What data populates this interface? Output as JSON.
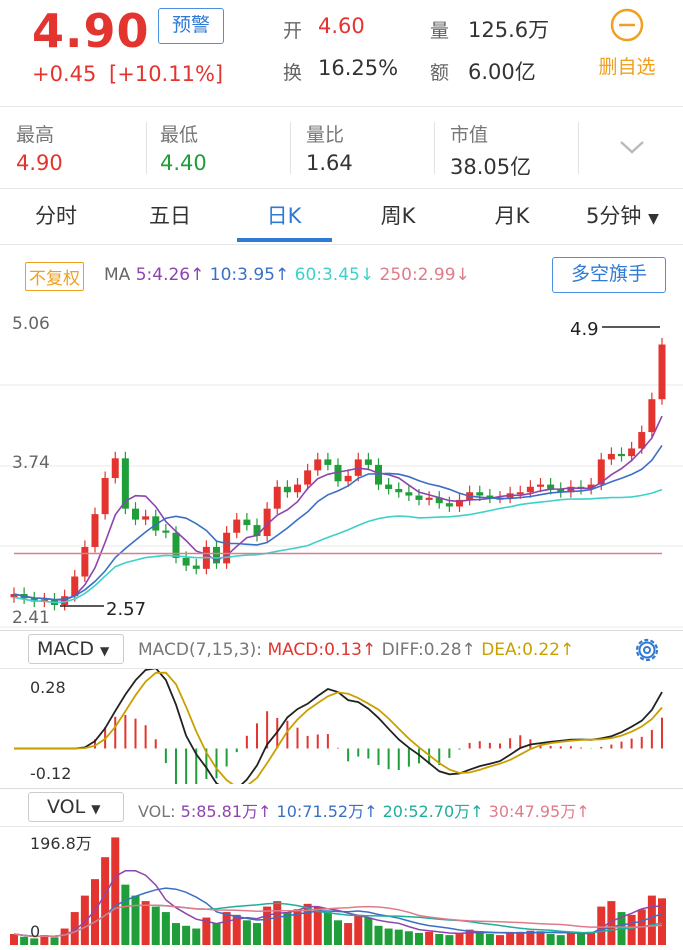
{
  "header": {
    "price": "4.90",
    "change": "+0.45",
    "change_pct": "[+10.11%]",
    "alert_label": "预警",
    "open_label": "开",
    "open_value": "4.60",
    "volume_label": "量",
    "volume_value": "125.6万",
    "turnover_label": "换",
    "turnover_value": "16.25%",
    "amount_label": "额",
    "amount_value": "6.00亿",
    "remove_watch_label": "删自选"
  },
  "stats": [
    {
      "label": "最高",
      "value": "4.90",
      "color": "#e3342f"
    },
    {
      "label": "最低",
      "value": "4.40",
      "color": "#1f9e3a"
    },
    {
      "label": "量比",
      "value": "1.64",
      "color": "#333333"
    },
    {
      "label": "市值",
      "value": "38.05亿",
      "color": "#333333"
    }
  ],
  "tabs": [
    {
      "label": "分时",
      "active": false
    },
    {
      "label": "五日",
      "active": false
    },
    {
      "label": "日K",
      "active": true
    },
    {
      "label": "周K",
      "active": false
    },
    {
      "label": "月K",
      "active": false
    },
    {
      "label": "5分钟",
      "active": false
    }
  ],
  "ma_bar": {
    "adjust_label": "不复权",
    "ma_label": "MA",
    "ma5": "5:4.26↑",
    "ma10": "10:3.95↑",
    "ma60": "60:3.45↓",
    "ma250": "250:2.99↓",
    "bull_bear_label": "多空旗手"
  },
  "kline": {
    "ymax_label": "5.06",
    "ymid_label": "3.74",
    "ymin_label": "2.41",
    "high_annot": "4.9",
    "low_annot": "2.57"
  },
  "macd_bar": {
    "selector": "MACD",
    "params": "MACD(7,15,3):",
    "macd": "MACD:0.13↑",
    "diff": "DIFF:0.28↑",
    "dea": "DEA:0.22↑",
    "top_label": "0.28",
    "bottom_label": "-0.12"
  },
  "vol_bar": {
    "selector": "VOL",
    "params": "VOL:",
    "v5": "5:85.81万↑",
    "v10": "10:71.52万↑",
    "v20": "20:52.70万↑",
    "v30": "30:47.95万↑",
    "top_label": "196.8万",
    "bottom_label": "0"
  },
  "colors": {
    "up": "#e3342f",
    "down": "#1f9e3a",
    "ma5": "#8e44ad",
    "ma10": "#3b6fc6",
    "ma60": "#3dd1c9",
    "ma250": "#e07b8a",
    "accent": "#4a90e2",
    "orange": "#f0a020"
  },
  "icons": {
    "remove_watch": "minus-circle-icon",
    "expand": "chevron-down-icon",
    "settings": "gear-icon",
    "dropdown": "triangle-down-icon"
  }
}
